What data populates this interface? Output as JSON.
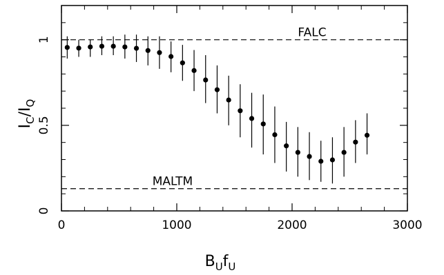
{
  "chart_data": {
    "type": "scatter",
    "xlabel": {
      "main": "B",
      "sub1": "U",
      "mid": "f",
      "sub2": "U"
    },
    "ylabel": {
      "main1": "I",
      "sub1": "C",
      "slash": "/",
      "main2": "I",
      "sub2": "Q"
    },
    "xlim": [
      0,
      3000
    ],
    "ylim": [
      0,
      1.2
    ],
    "xticks": [
      0,
      1000,
      2000,
      3000
    ],
    "xtick_labels": [
      "0",
      "1000",
      "2000",
      "3000"
    ],
    "yticks": [
      0,
      0.5,
      1
    ],
    "ytick_labels": [
      "0",
      "0.5",
      "1"
    ],
    "grid": false,
    "reference_lines": [
      {
        "label": "FALC",
        "y": 1.0
      },
      {
        "label": "MALTM",
        "y": 0.13
      }
    ],
    "series": [
      {
        "x": [
          50,
          150,
          250,
          350,
          450,
          550,
          650,
          750,
          850,
          950,
          1050,
          1150,
          1250,
          1350,
          1450,
          1550,
          1650,
          1750,
          1850,
          1950,
          2050,
          2150,
          2250,
          2350,
          2450,
          2550,
          2650
        ],
        "y": [
          0.955,
          0.951,
          0.958,
          0.962,
          0.962,
          0.958,
          0.95,
          0.937,
          0.925,
          0.902,
          0.865,
          0.82,
          0.765,
          0.708,
          0.648,
          0.585,
          0.54,
          0.508,
          0.445,
          0.38,
          0.342,
          0.318,
          0.29,
          0.298,
          0.342,
          0.402,
          0.442
        ],
        "y_low": [
          0.89,
          0.9,
          0.9,
          0.91,
          0.91,
          0.89,
          0.87,
          0.85,
          0.83,
          0.81,
          0.76,
          0.7,
          0.63,
          0.57,
          0.5,
          0.43,
          0.37,
          0.33,
          0.28,
          0.23,
          0.2,
          0.18,
          0.17,
          0.16,
          0.2,
          0.28,
          0.33
        ],
        "y_high": [
          1.02,
          1.0,
          1.0,
          1.02,
          1.02,
          1.03,
          1.03,
          1.02,
          1.02,
          0.99,
          0.97,
          0.94,
          0.91,
          0.85,
          0.79,
          0.74,
          0.69,
          0.68,
          0.61,
          0.52,
          0.49,
          0.46,
          0.41,
          0.43,
          0.49,
          0.53,
          0.57
        ]
      }
    ]
  }
}
